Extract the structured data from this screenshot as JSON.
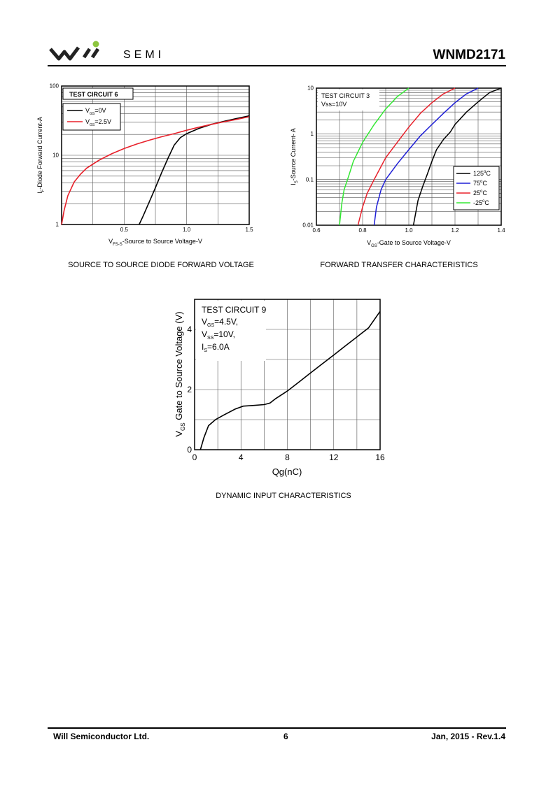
{
  "header": {
    "logo_text": "SEMI",
    "logo_dot_color": "#8dc63f",
    "part_number": "WNMD2171"
  },
  "charts": {
    "chart1": {
      "caption": "SOURCE TO SOURCE DIODE FORWARD VOLTAGE",
      "box_label": "TEST CIRCUIT 6",
      "legend": [
        {
          "sym": "V",
          "sub": "GS",
          "val": "=0V",
          "color": "#000000"
        },
        {
          "sym": "V",
          "sub": "GS",
          "val": "=2.5V",
          "color": "#e8202a"
        }
      ],
      "ylabel": {
        "sym": "I",
        "sub": "F",
        "rest": "-Diode Forward Current-A"
      },
      "xlabel": {
        "sym": "V",
        "sub": "FS-S",
        "rest": "-Source to Source Voltage-V"
      },
      "xticks": [
        "0.5",
        "1.0",
        "1.5"
      ],
      "yticks": [
        "100",
        "10",
        "1"
      ]
    },
    "chart2": {
      "caption": "FORWARD TRANSFER CHARACTERISTICS",
      "box_line1": "TEST CIRCUIT 3",
      "box_line2": "Vss=10V",
      "legend": [
        {
          "label": "125",
          "unit": "C",
          "color": "#000000"
        },
        {
          "label": "75",
          "unit": "C",
          "color": "#1f1fd6"
        },
        {
          "label": "25",
          "unit": "C",
          "color": "#e8202a"
        },
        {
          "label": "-25",
          "unit": "C",
          "color": "#33e833"
        }
      ],
      "ylabel": {
        "sym": "I",
        "sub": "S",
        "rest": "-Source Current- A"
      },
      "xlabel": {
        "sym": "V",
        "sub": "GS",
        "rest": "-Gate to Source Voltage-V"
      },
      "xticks": [
        "0.6",
        "0.8",
        "1.0",
        "1.2",
        "1.4"
      ],
      "yticks": [
        "10",
        "1",
        "0.1",
        "0.01"
      ]
    },
    "chart3": {
      "caption": "DYNAMIC INPUT CHARACTERISTICS",
      "box_line1": "TEST CIRCUIT 9",
      "box_vgs": {
        "sym": "V",
        "sub": "GS",
        "val": "=4.5V,"
      },
      "box_vss": {
        "sym": "V",
        "sub": "SS",
        "val": "=10V,"
      },
      "box_is": {
        "sym": "I",
        "sub": "S",
        "val": "=6.0A"
      },
      "ylabel": {
        "sym": "V",
        "sub": "GS",
        "rest": " Gate to Source Voltage (V)"
      },
      "xlabel": "Qg(nC)",
      "xticks": [
        "0",
        "4",
        "8",
        "12",
        "16"
      ],
      "yticks": [
        "0",
        "2",
        "4"
      ]
    }
  },
  "chart_data": [
    {
      "type": "line",
      "title": "SOURCE TO SOURCE DIODE FORWARD VOLTAGE",
      "xlabel": "VFS-S-Source to Source Voltage-V",
      "ylabel": "IF-Diode Forward Current-A",
      "xlim": [
        0,
        1.5
      ],
      "ylim": [
        1,
        100
      ],
      "yscale": "log",
      "series": [
        {
          "name": "VGS=0V",
          "color": "#000000",
          "x": [
            0.62,
            0.65,
            0.7,
            0.75,
            0.8,
            0.85,
            0.9,
            0.95,
            1.0,
            1.1,
            1.2,
            1.3,
            1.4,
            1.5
          ],
          "y": [
            1,
            1.3,
            2.1,
            3.4,
            5.6,
            9.0,
            14,
            18,
            20.5,
            24.5,
            28,
            31,
            34,
            37
          ]
        },
        {
          "name": "VGS=2.5V",
          "color": "#e8202a",
          "x": [
            0.0,
            0.02,
            0.05,
            0.1,
            0.15,
            0.2,
            0.3,
            0.4,
            0.5,
            0.6,
            0.7,
            0.8,
            0.9,
            1.0,
            1.1,
            1.2,
            1.3,
            1.4,
            1.5
          ],
          "y": [
            1,
            1.6,
            2.6,
            4.1,
            5.3,
            6.5,
            8.5,
            10.5,
            12.5,
            14.5,
            16.5,
            18.5,
            20.5,
            23,
            25.5,
            28,
            30.5,
            33,
            36
          ]
        }
      ]
    },
    {
      "type": "line",
      "title": "FORWARD TRANSFER CHARACTERISTICS",
      "xlabel": "VGS-Gate to Source Voltage-V",
      "ylabel": "IS-Source Current- A",
      "xlim": [
        0.6,
        1.4
      ],
      "ylim": [
        0.01,
        10
      ],
      "yscale": "log",
      "series": [
        {
          "name": "125°C",
          "color": "#000000",
          "x": [
            1.02,
            1.04,
            1.06,
            1.08,
            1.1,
            1.12,
            1.15,
            1.18,
            1.2,
            1.25,
            1.3,
            1.35,
            1.4
          ],
          "y": [
            0.01,
            0.035,
            0.07,
            0.13,
            0.25,
            0.45,
            0.75,
            1.1,
            1.6,
            3,
            5,
            8,
            11
          ]
        },
        {
          "name": "75°C",
          "color": "#1f1fd6",
          "x": [
            0.85,
            0.86,
            0.88,
            0.9,
            0.95,
            1.0,
            1.05,
            1.1,
            1.15,
            1.2,
            1.25,
            1.3
          ],
          "y": [
            0.01,
            0.025,
            0.06,
            0.1,
            0.22,
            0.45,
            0.9,
            1.6,
            2.8,
            4.8,
            7.5,
            11
          ]
        },
        {
          "name": "25°C",
          "color": "#e8202a",
          "x": [
            0.78,
            0.8,
            0.82,
            0.85,
            0.9,
            0.95,
            1.0,
            1.05,
            1.1,
            1.15,
            1.2
          ],
          "y": [
            0.01,
            0.025,
            0.05,
            0.1,
            0.3,
            0.65,
            1.4,
            2.8,
            4.8,
            7.5,
            11
          ]
        },
        {
          "name": "-25°C",
          "color": "#33e833",
          "x": [
            0.7,
            0.71,
            0.72,
            0.74,
            0.76,
            0.8,
            0.85,
            0.9,
            0.95,
            1.0
          ],
          "y": [
            0.01,
            0.03,
            0.06,
            0.12,
            0.25,
            0.65,
            1.6,
            3.5,
            6.5,
            11
          ]
        }
      ]
    },
    {
      "type": "line",
      "title": "DYNAMIC INPUT CHARACTERISTICS",
      "xlabel": "Qg(nC)",
      "ylabel": "VGS Gate to Source Voltage (V)",
      "xlim": [
        0,
        16
      ],
      "ylim": [
        0,
        5
      ],
      "series": [
        {
          "name": "VGS",
          "color": "#000000",
          "x": [
            0.5,
            0.8,
            1.2,
            1.8,
            2.5,
            3.5,
            4.2,
            5,
            6,
            6.5,
            7,
            8,
            9,
            10,
            11,
            12,
            13,
            14,
            15,
            16
          ],
          "y": [
            0,
            0.4,
            0.8,
            1.0,
            1.15,
            1.35,
            1.45,
            1.47,
            1.5,
            1.55,
            1.7,
            1.95,
            2.25,
            2.55,
            2.85,
            3.15,
            3.45,
            3.75,
            4.05,
            4.6
          ]
        }
      ]
    }
  ],
  "footer": {
    "company": "Will Semiconductor Ltd.",
    "page": "6",
    "date_rev": "Jan, 2015 - Rev.1.4"
  }
}
